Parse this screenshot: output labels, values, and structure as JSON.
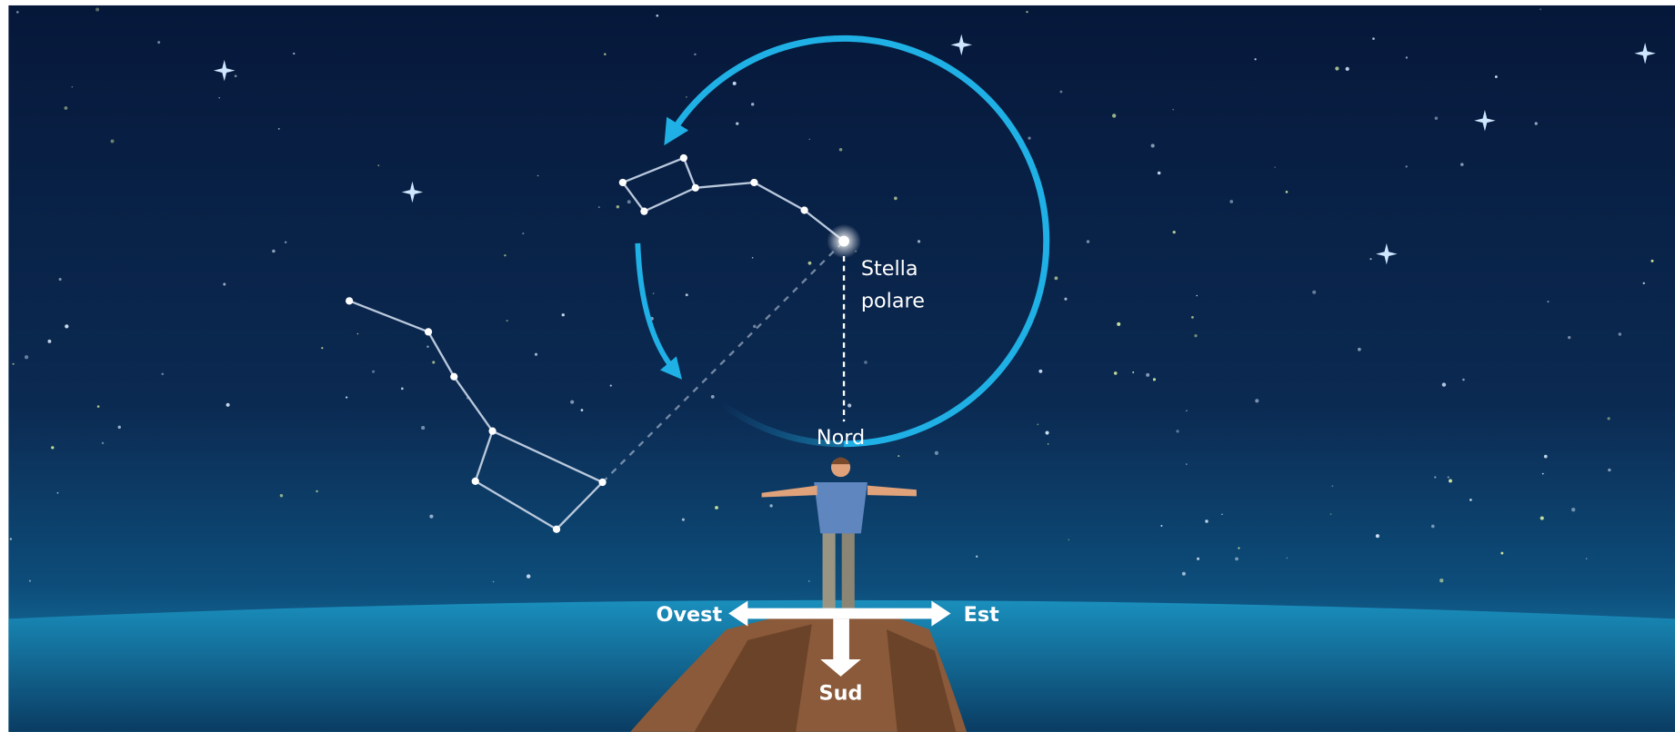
{
  "polaris_label": {
    "line1": "Stella",
    "line2": "polare"
  },
  "directions": {
    "north": "Nord",
    "west": "Ovest",
    "east": "Est",
    "south": "Sud"
  }
}
